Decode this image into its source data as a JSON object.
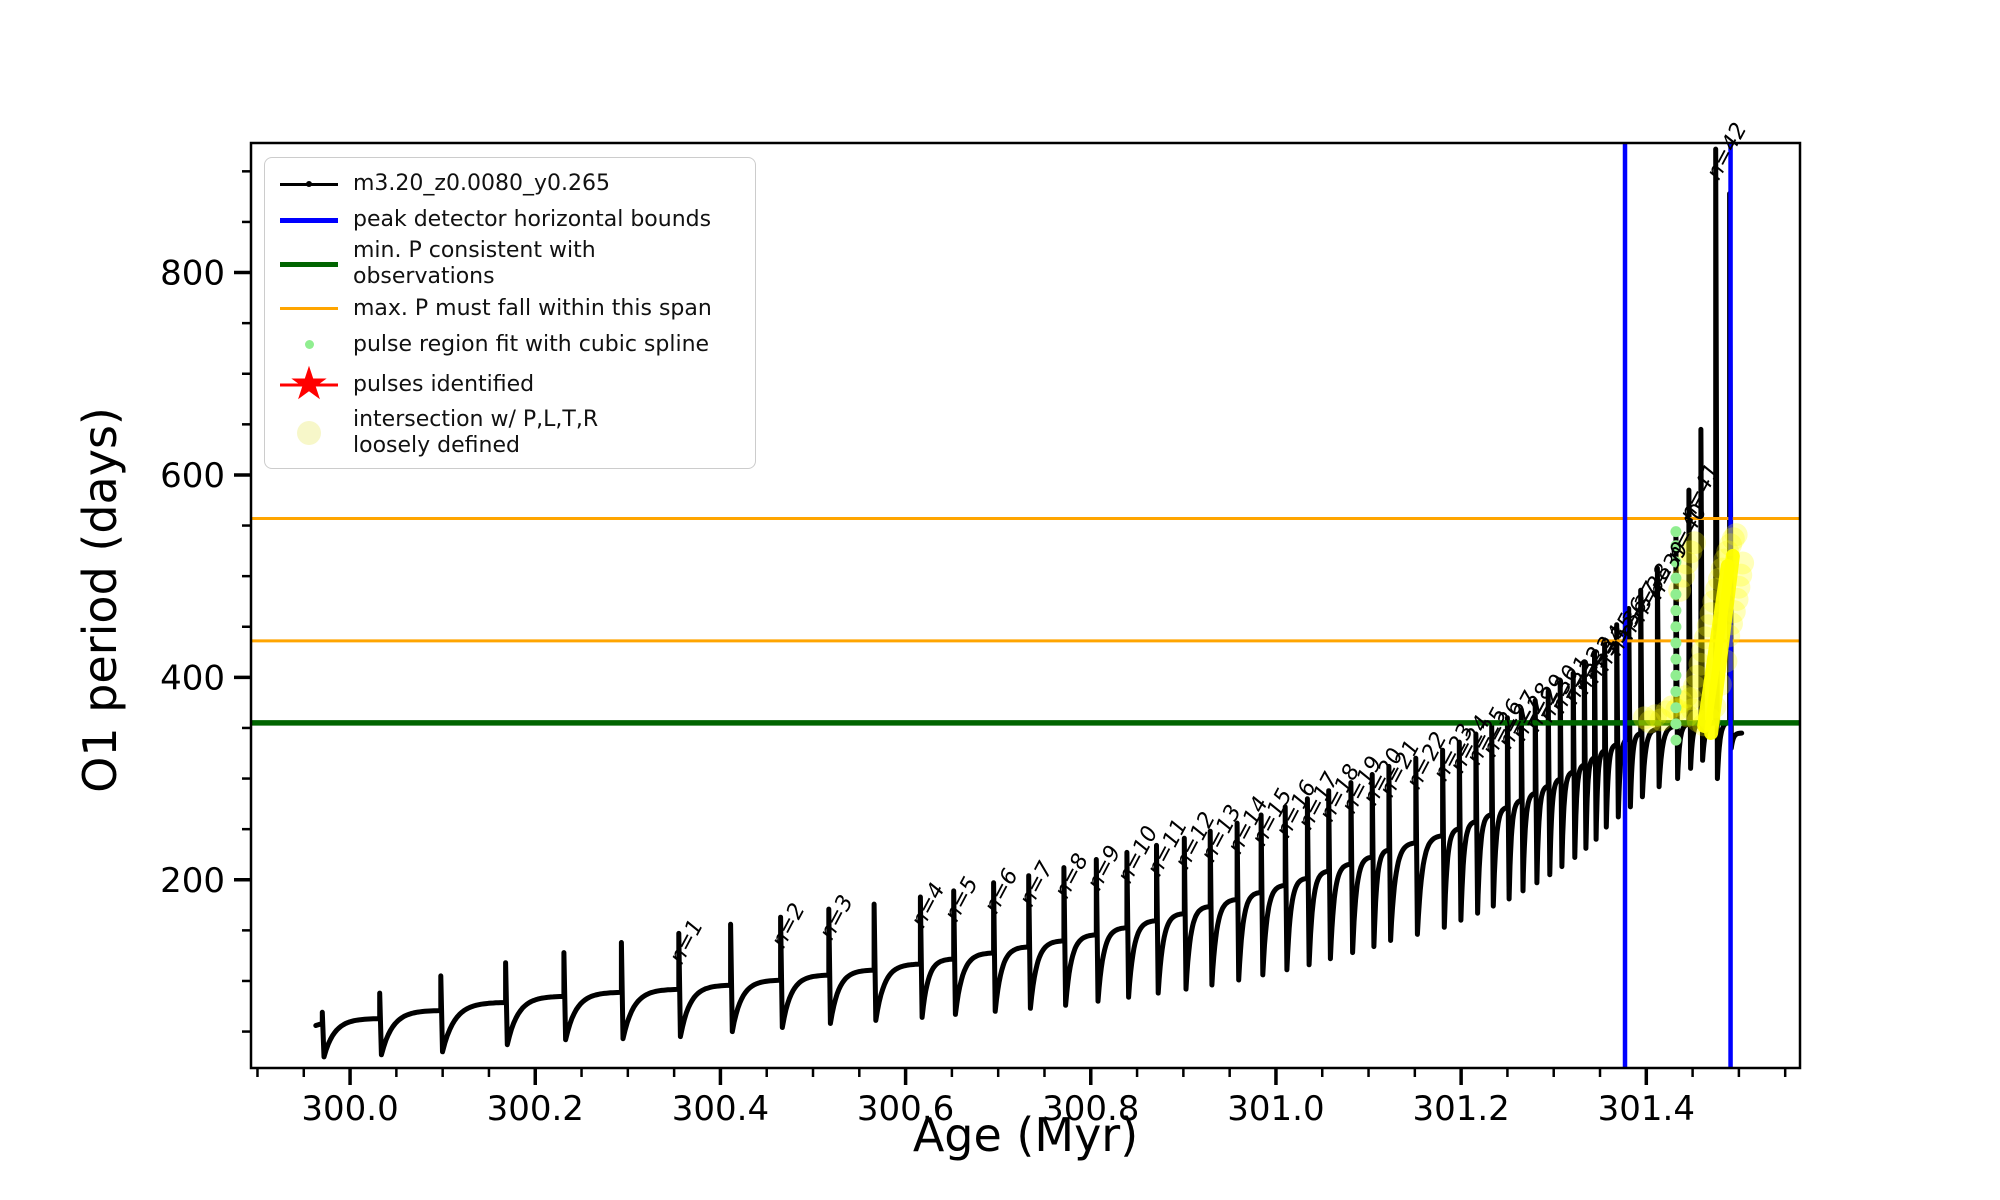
{
  "figure": {
    "background": "#ffffff"
  },
  "axis": {
    "xlabel": "Age (Myr)",
    "ylabel": "O1 period (days)"
  },
  "legend": {
    "items": [
      {
        "type": "line-dot",
        "color": "#000000",
        "label": "m3.20_z0.0080_y0.265"
      },
      {
        "type": "line-thick",
        "color": "#0000ff",
        "label": "peak detector horizontal bounds"
      },
      {
        "type": "line-thick",
        "color": "#006400",
        "label": "min. P consistent with observations"
      },
      {
        "type": "line",
        "color": "#ffa500",
        "label": "max. P must fall within this span"
      },
      {
        "type": "dot-small",
        "color": "#90ee90",
        "label": "pulse region fit with cubic spline"
      },
      {
        "type": "star",
        "color": "#ff0000",
        "label": "pulses identified"
      },
      {
        "type": "dot-large",
        "color": "#eeee88",
        "label": "intersection w/ P,L,T,R\nloosely defined"
      }
    ]
  },
  "chart_data": {
    "type": "line",
    "title": "",
    "xlabel": "Age (Myr)",
    "ylabel": "O1 period (days)",
    "xlim": [
      299.893,
      301.566
    ],
    "ylim": [
      14,
      928
    ],
    "grid": false,
    "legend_position": "upper left",
    "x_ticks": {
      "major_values": [
        300.0,
        300.2,
        300.4,
        300.6,
        300.8,
        301.0,
        301.2,
        301.4
      ],
      "major_labels": [
        "300.0",
        "300.2",
        "300.4",
        "300.6",
        "300.8",
        "301.0",
        "301.2",
        "301.4"
      ],
      "minor_step": 0.05
    },
    "y_ticks": {
      "major_values": [
        200,
        400,
        600,
        800
      ],
      "major_labels": [
        "200",
        "400",
        "600",
        "800"
      ],
      "minor_step": 50
    },
    "series_label": "m3.20_z0.0080_y0.265",
    "pulse_label_prefix": "n=",
    "curve_start": [
      299.963,
      56
    ],
    "curve_end": [
      301.503,
      345
    ],
    "pulses": [
      [
        299.97,
        58,
        69,
        25,
        null
      ],
      [
        300.032,
        63,
        88,
        27,
        null
      ],
      [
        300.098,
        71,
        105,
        30,
        null
      ],
      [
        300.168,
        79,
        118,
        37,
        null
      ],
      [
        300.231,
        85,
        128,
        42,
        null
      ],
      [
        300.293,
        89,
        138,
        43,
        null
      ],
      [
        300.355,
        92,
        147,
        45,
        1
      ],
      [
        300.411,
        96,
        156,
        50,
        null
      ],
      [
        300.465,
        101,
        163,
        54,
        2
      ],
      [
        300.517,
        106,
        171,
        58,
        3
      ],
      [
        300.566,
        111,
        176,
        61,
        null
      ],
      [
        300.616,
        117,
        183,
        64,
        4
      ],
      [
        300.652,
        122,
        189,
        67,
        5
      ],
      [
        300.695,
        128,
        197,
        70,
        6
      ],
      [
        300.733,
        134,
        204,
        73,
        7
      ],
      [
        300.771,
        140,
        212,
        76,
        8
      ],
      [
        300.806,
        146,
        220,
        80,
        9
      ],
      [
        300.839,
        153,
        227,
        84,
        10
      ],
      [
        300.871,
        160,
        234,
        88,
        11
      ],
      [
        300.901,
        167,
        241,
        92,
        12
      ],
      [
        300.929,
        174,
        248,
        96,
        13
      ],
      [
        300.958,
        181,
        256,
        101,
        14
      ],
      [
        300.984,
        188,
        264,
        106,
        15
      ],
      [
        301.01,
        195,
        272,
        111,
        16
      ],
      [
        301.034,
        202,
        280,
        116,
        17
      ],
      [
        301.057,
        209,
        288,
        122,
        18
      ],
      [
        301.081,
        216,
        296,
        128,
        19
      ],
      [
        301.104,
        223,
        304,
        134,
        20
      ],
      [
        301.122,
        230,
        312,
        140,
        21
      ],
      [
        301.151,
        237,
        320,
        146,
        22
      ],
      [
        301.18,
        244,
        328,
        153,
        23
      ],
      [
        301.198,
        251,
        336,
        160,
        24
      ],
      [
        301.216,
        258,
        344,
        167,
        25
      ],
      [
        301.233,
        265,
        352,
        174,
        26
      ],
      [
        301.25,
        272,
        360,
        181,
        27
      ],
      [
        301.265,
        279,
        368,
        189,
        28
      ],
      [
        301.28,
        286,
        377,
        197,
        29
      ],
      [
        301.294,
        293,
        386,
        205,
        30
      ],
      [
        301.307,
        300,
        395,
        213,
        31
      ],
      [
        301.321,
        307,
        404,
        222,
        32
      ],
      [
        301.333,
        314,
        414,
        231,
        33
      ],
      [
        301.344,
        321,
        425,
        240,
        34
      ],
      [
        301.355,
        328,
        437,
        252,
        35
      ],
      [
        301.368,
        334,
        452,
        262,
        36
      ],
      [
        301.381,
        340,
        468,
        272,
        37
      ],
      [
        301.394,
        345,
        486,
        282,
        38
      ],
      [
        301.412,
        349,
        508,
        292,
        39
      ],
      [
        301.432,
        352,
        545,
        300,
        40
      ],
      [
        301.446,
        354,
        585,
        310,
        41
      ],
      [
        301.459,
        355,
        645,
        318,
        null
      ],
      [
        301.475,
        356,
        922,
        300,
        42
      ],
      [
        301.49,
        356,
        878,
        330,
        null
      ]
    ],
    "hlines": {
      "green_min_P": 355,
      "orange_max_P": [
        436,
        557
      ]
    },
    "vlines_blue": [
      301.377,
      301.491
    ],
    "spline_dots": {
      "age": 301.432,
      "P": [
        338,
        354,
        370,
        386,
        402,
        418,
        434,
        450,
        466,
        482,
        498,
        514,
        530,
        544
      ]
    },
    "intersection_points": [
      [
        301.398,
        360
      ],
      [
        301.404,
        356
      ],
      [
        301.41,
        362
      ],
      [
        301.416,
        358
      ],
      [
        301.422,
        366
      ],
      [
        301.428,
        371
      ],
      [
        301.433,
        368
      ],
      [
        301.438,
        376
      ],
      [
        301.443,
        381
      ],
      [
        301.448,
        379
      ],
      [
        301.452,
        391
      ],
      [
        301.455,
        401
      ],
      [
        301.458,
        413
      ],
      [
        301.461,
        426
      ],
      [
        301.464,
        439
      ],
      [
        301.467,
        451
      ],
      [
        301.47,
        463
      ],
      [
        301.473,
        475
      ],
      [
        301.476,
        487
      ],
      [
        301.479,
        497
      ],
      [
        301.482,
        507
      ],
      [
        301.485,
        516
      ],
      [
        301.488,
        524
      ],
      [
        301.491,
        531
      ],
      [
        301.494,
        537
      ],
      [
        301.497,
        541
      ],
      [
        301.489,
        441
      ],
      [
        301.492,
        453
      ],
      [
        301.495,
        465
      ],
      [
        301.498,
        477
      ],
      [
        301.5,
        489
      ],
      [
        301.486,
        416
      ],
      [
        301.48,
        393
      ],
      [
        301.474,
        371
      ],
      [
        301.468,
        359
      ],
      [
        301.462,
        353
      ],
      [
        301.502,
        501
      ],
      [
        301.504,
        513
      ],
      [
        301.444,
        362
      ],
      [
        301.45,
        368
      ],
      [
        301.456,
        357
      ],
      [
        301.436,
        486
      ],
      [
        301.44,
        500
      ],
      [
        301.444,
        513
      ],
      [
        301.448,
        524
      ],
      [
        301.452,
        533
      ]
    ],
    "yellow_strokes": [
      [
        301.4625,
        352,
        301.488,
        510
      ],
      [
        301.47,
        345,
        301.4935,
        520
      ]
    ],
    "colors": {
      "series": "#000000",
      "bounds_blue": "#0000ff",
      "min_green": "#006400",
      "max_orange": "#ffa500",
      "spline_green": "#90ee90",
      "pulse_red": "#ff0000",
      "intersect_yellow": "#ffff00",
      "frame": "#000000"
    }
  }
}
